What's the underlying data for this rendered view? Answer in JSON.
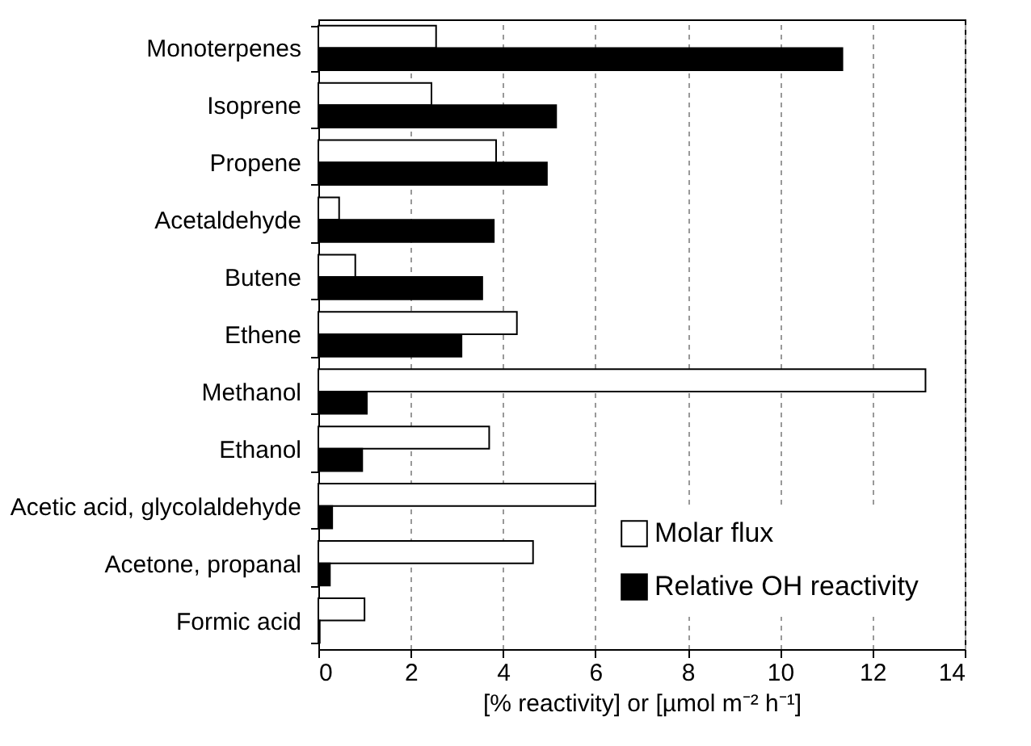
{
  "chart_data": {
    "type": "bar",
    "orientation": "horizontal",
    "xlabel": "[% reactivity] or [µmol m⁻² h⁻¹]",
    "categories": [
      "Monoterpenes",
      "Isoprene",
      "Propene",
      "Acetaldehyde",
      "Butene",
      "Ethene",
      "Methanol",
      "Ethanol",
      "Acetic acid, glycolaldehyde",
      "Acetone, propanal",
      "Formic acid"
    ],
    "series": [
      {
        "name": "Molar flux",
        "color": "#ffffff",
        "values": [
          2.55,
          2.45,
          3.85,
          0.45,
          0.8,
          4.3,
          13.15,
          3.7,
          6.0,
          4.65,
          1.0
        ]
      },
      {
        "name": "Relative OH reactivity",
        "color": "#000000",
        "values": [
          11.35,
          5.15,
          4.95,
          3.8,
          3.55,
          3.1,
          1.05,
          0.95,
          0.3,
          0.25,
          0.03
        ]
      }
    ],
    "xlim": [
      0,
      14
    ],
    "xticks": [
      0,
      2,
      4,
      6,
      8,
      10,
      12,
      14
    ],
    "grid": "x",
    "legend": "bottom right"
  }
}
